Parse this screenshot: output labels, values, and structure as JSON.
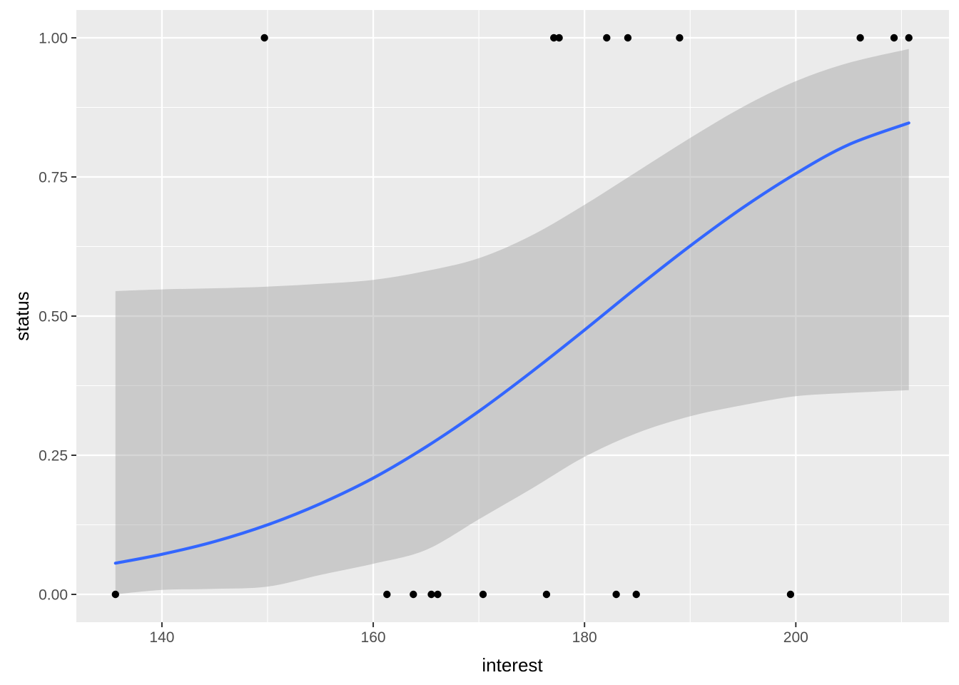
{
  "figure": {
    "background": "#FFFFFF"
  },
  "chart_data": {
    "type": "scatter",
    "title": "",
    "xlabel": "interest",
    "ylabel": "status",
    "xlim": [
      131.9,
      214.5
    ],
    "ylim": [
      -0.05,
      1.05
    ],
    "grid": true,
    "legend": "none",
    "x_major_ticks": [
      140,
      160,
      180,
      200
    ],
    "x_major_tick_labels": [
      "140",
      "160",
      "180",
      "200"
    ],
    "x_minor_ticks": [
      150,
      170,
      190,
      210
    ],
    "y_major_ticks": [
      0,
      0.25,
      0.5,
      0.75,
      1
    ],
    "y_major_tick_labels": [
      "0.00",
      "0.25",
      "0.50",
      "0.75",
      "1.00"
    ],
    "y_minor_ticks": [
      0.125,
      0.375,
      0.625,
      0.875
    ],
    "points": {
      "status_1_x": [
        149.7,
        177.1,
        177.6,
        182.1,
        184.1,
        189.0,
        206.1,
        209.3,
        210.7
      ],
      "status_1_y": 1,
      "status_0_x": [
        135.6,
        161.3,
        163.8,
        165.5,
        166.1,
        170.4,
        176.4,
        183.0,
        184.9,
        199.5
      ],
      "status_0_y": 0
    },
    "smooth_line": {
      "name": "logistic fit",
      "x": [
        135.6,
        140,
        145,
        150,
        155,
        160,
        165,
        170,
        175,
        180,
        185,
        190,
        195,
        200,
        205,
        210.7
      ],
      "y": [
        0.056,
        0.072,
        0.095,
        0.125,
        0.163,
        0.209,
        0.265,
        0.329,
        0.4,
        0.475,
        0.552,
        0.626,
        0.695,
        0.756,
        0.808,
        0.847
      ]
    },
    "confidence_band": {
      "name": "95% confidence band",
      "x": [
        135.6,
        140,
        145,
        150,
        155,
        160,
        165,
        170,
        175,
        180,
        185,
        190,
        195,
        200,
        205,
        210.7
      ],
      "upper": [
        0.545,
        0.548,
        0.55,
        0.553,
        0.558,
        0.565,
        0.581,
        0.604,
        0.645,
        0.7,
        0.76,
        0.82,
        0.876,
        0.922,
        0.955,
        0.98
      ],
      "lower": [
        0.0,
        0.008,
        0.01,
        0.014,
        0.035,
        0.055,
        0.08,
        0.135,
        0.19,
        0.247,
        0.29,
        0.32,
        0.34,
        0.356,
        0.362,
        0.367
      ]
    },
    "colors": {
      "point": "#000000",
      "line": "#3366FF",
      "band": "#999999",
      "band_opacity": 0.4,
      "panel_bg": "#EBEBEB",
      "grid": "#FFFFFF",
      "axis_text": "#4D4D4D",
      "axis_title": "#000000",
      "tick": "#333333"
    }
  }
}
